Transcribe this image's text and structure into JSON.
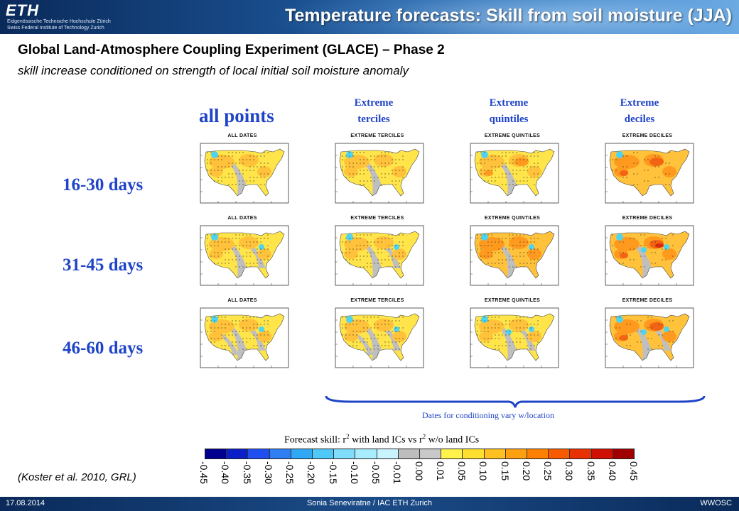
{
  "header": {
    "logo_mark": "ETH",
    "logo_line1": "Eidgenössische Technische Hochschule Zürich",
    "logo_line2": "Swiss Federal Institute of Technology Zurich",
    "title": "Temperature forecasts: Skill from soil moisture (JJA)"
  },
  "subtitle": {
    "main": "Global Land-Atmosphere Coupling Experiment (GLACE) – Phase 2",
    "sub": "skill increase conditioned on strength of local initial soil moisture anomaly"
  },
  "columns": {
    "all_points": "all points",
    "terciles": [
      "Extreme",
      "terciles"
    ],
    "quintiles": [
      "Extreme",
      "quintiles"
    ],
    "deciles": [
      "Extreme",
      "deciles"
    ]
  },
  "panel_titles": [
    "ALL DATES",
    "EXTREME TERCILES",
    "EXTREME QUINTILES",
    "EXTREME DECILES"
  ],
  "rows": [
    "16-30 days",
    "31-45 days",
    "46-60 days"
  ],
  "brace_caption": "Dates for conditioning vary w/location",
  "forecast_caption": {
    "part1": "Forecast skill: r",
    "sup1": "2",
    "part2": " with land ICs vs r",
    "sup2": "2",
    "part3": " w/o land ICs"
  },
  "colorbar": {
    "ticks": [
      "-0.45",
      "-0.40",
      "-0.35",
      "-0.30",
      "-0.25",
      "-0.20",
      "-0.15",
      "-0.10",
      "-0.05",
      "-0.01",
      "0.00",
      "0.01",
      "0.05",
      "0.10",
      "0.15",
      "0.20",
      "0.25",
      "0.30",
      "0.35",
      "0.40",
      "0.45"
    ],
    "colors": [
      "#00008f",
      "#0a1fc8",
      "#1f4ff0",
      "#2f7ff2",
      "#30a8f5",
      "#50c8f8",
      "#7fdcfa",
      "#a8ecfd",
      "#c8f4ff",
      "#bdbdbd",
      "#c8c8c8",
      "#fff24a",
      "#ffe030",
      "#ffc020",
      "#ffa010",
      "#ff8000",
      "#f85a00",
      "#e83000",
      "#d01000",
      "#a00000"
    ]
  },
  "map_colors": {
    "gray": "#bfbfbf",
    "yellow": "#ffe54a",
    "light_orange": "#ffc23a",
    "orange": "#ff9a1f",
    "dark_orange": "#f26414",
    "red": "#d82a0a",
    "cyan": "#4fd4f0",
    "blue": "#2f8ff0"
  },
  "citation": "(Koster et al. 2010, GRL)",
  "footer": {
    "date": "17.08.2014",
    "center": "Sonia Seneviratne / IAC ETH Zurich",
    "right": "WWOSC"
  }
}
